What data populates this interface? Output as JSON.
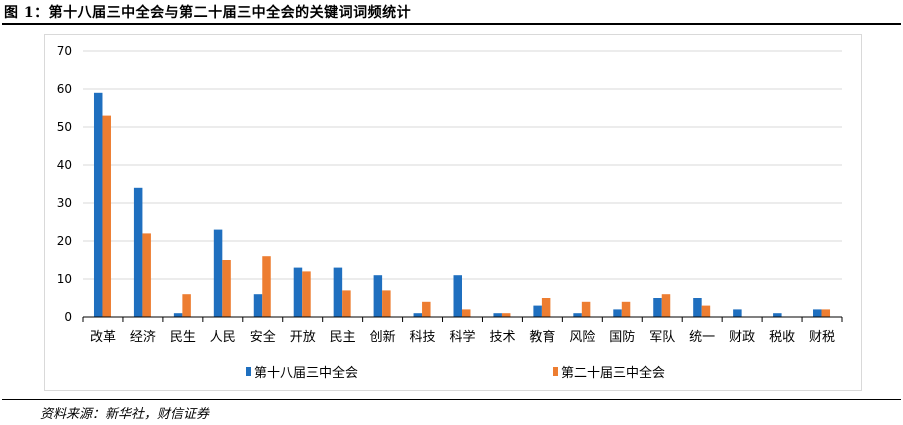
{
  "header": {
    "title": "图 1：第十八届三中全会与第二十届三中全会的关键词词频统计"
  },
  "footer": {
    "source": "资料来源：新华社，财信证券"
  },
  "colors": {
    "series1": "#1f6fbf",
    "series2": "#ed7d31",
    "grid": "#d9d9d9"
  },
  "chart_data": {
    "type": "bar",
    "categories": [
      "改革",
      "经济",
      "民生",
      "人民",
      "安全",
      "开放",
      "民主",
      "创新",
      "科技",
      "科学",
      "技术",
      "教育",
      "风险",
      "国防",
      "军队",
      "统一",
      "财政",
      "税收",
      "财税"
    ],
    "series": [
      {
        "name": "第十八届三中全会",
        "values": [
          59,
          34,
          1,
          23,
          6,
          13,
          13,
          11,
          1,
          11,
          1,
          3,
          1,
          2,
          5,
          5,
          2,
          1,
          2
        ]
      },
      {
        "name": "第二十届三中全会",
        "values": [
          53,
          22,
          6,
          15,
          16,
          12,
          7,
          7,
          4,
          2,
          1,
          5,
          4,
          4,
          6,
          3,
          0,
          0,
          2
        ]
      }
    ],
    "yticks": [
      0,
      10,
      20,
      30,
      40,
      50,
      60,
      70
    ],
    "ylim": [
      0,
      70
    ],
    "grid": true,
    "legend": "bottom"
  }
}
